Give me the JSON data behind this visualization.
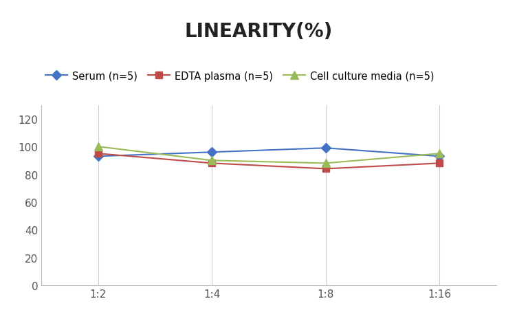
{
  "title": "LINEARITY(%)",
  "x_labels": [
    "1:2",
    "1:4",
    "1:8",
    "1:16"
  ],
  "x_positions": [
    0,
    1,
    2,
    3
  ],
  "serum": [
    93,
    96,
    99,
    93
  ],
  "edta": [
    95,
    88,
    84,
    88
  ],
  "cell": [
    100,
    90,
    88,
    95
  ],
  "serum_color": "#4472c4",
  "edta_color": "#be4b48",
  "cell_color": "#9bbb59",
  "ylim": [
    0,
    130
  ],
  "yticks": [
    0,
    20,
    40,
    60,
    80,
    100,
    120
  ],
  "legend_serum": "Serum (n=5)",
  "legend_edta": "EDTA plasma (n=5)",
  "legend_cell": "Cell culture media (n=5)",
  "title_fontsize": 20,
  "title_fontweight": "bold",
  "legend_fontsize": 10.5,
  "tick_fontsize": 11,
  "bg_color": "#ffffff",
  "grid_color": "#d0d0d0"
}
